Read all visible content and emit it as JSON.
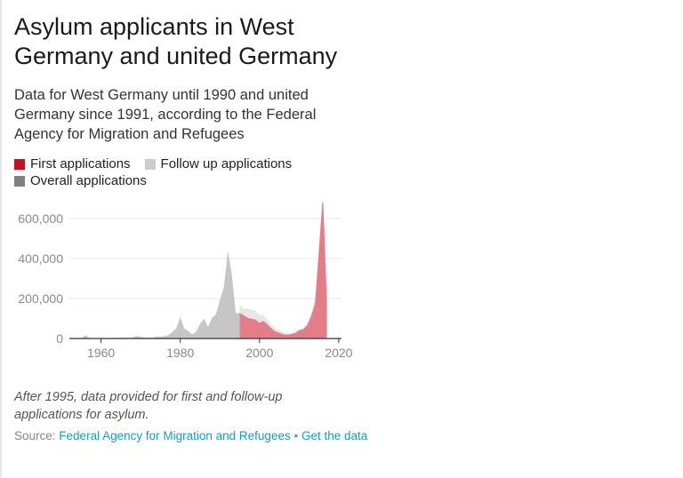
{
  "title": "Asylum applicants in West Germany and united Germany",
  "subtitle": "Data for West Germany until 1990 and united Germany since 1991, according to the Federal Agency for Migration and Refugees",
  "legend": {
    "first": "First applications",
    "follow": "Follow up applications",
    "overall": "Overall applications"
  },
  "colors": {
    "first": "#c4101f",
    "follow": "#cccccc",
    "overall": "#808080",
    "axis": "#333333",
    "grid": "#e6e6e6",
    "tick_text": "#888888",
    "link": "#1a9bbf"
  },
  "note": "After 1995, data provided for first and follow-up applications for asylum.",
  "source": {
    "prefix": "Source:",
    "link": "Federal Agency for Migration and Refugees",
    "separator": "•",
    "get_data": "Get the data"
  },
  "chart_data": {
    "type": "area",
    "x_ticks": [
      1960,
      1980,
      2000,
      2020
    ],
    "y_ticks": [
      0,
      200000,
      400000,
      600000
    ],
    "y_tick_labels": [
      "0",
      "200,000",
      "400,000",
      "600,000"
    ],
    "xlim": [
      1952,
      2018
    ],
    "ylim": [
      0,
      680000
    ],
    "grid": true,
    "legend_position": "top",
    "series": [
      {
        "name": "Overall applications",
        "x": [
          1953,
          1954,
          1955,
          1956,
          1957,
          1958,
          1959,
          1960,
          1961,
          1962,
          1963,
          1964,
          1965,
          1966,
          1967,
          1968,
          1969,
          1970,
          1971,
          1972,
          1973,
          1974,
          1975,
          1976,
          1977,
          1978,
          1979,
          1980,
          1981,
          1982,
          1983,
          1984,
          1985,
          1986,
          1987,
          1988,
          1989,
          1990,
          1991,
          1992,
          1993,
          1994,
          1995
        ],
        "values": [
          2000,
          2000,
          1000,
          16000,
          4000,
          3000,
          2000,
          3000,
          3000,
          2000,
          3000,
          4000,
          4000,
          4000,
          3000,
          6000,
          12000,
          9000,
          5000,
          5000,
          5000,
          9000,
          10000,
          11000,
          16000,
          33000,
          51000,
          108000,
          50000,
          37000,
          20000,
          35000,
          74000,
          100000,
          57000,
          103000,
          121000,
          193000,
          256000,
          438000,
          323000,
          127000,
          128000
        ]
      },
      {
        "name": "First applications",
        "x": [
          1995,
          1996,
          1997,
          1998,
          1999,
          2000,
          2001,
          2002,
          2003,
          2004,
          2005,
          2006,
          2007,
          2008,
          2009,
          2010,
          2011,
          2012,
          2013,
          2014,
          2015,
          2016,
          2017
        ],
        "values": [
          128000,
          116000,
          104000,
          99000,
          95000,
          79000,
          88000,
          71000,
          51000,
          36000,
          29000,
          21000,
          19000,
          22000,
          28000,
          41000,
          46000,
          65000,
          110000,
          173000,
          442000,
          722000,
          198000
        ]
      },
      {
        "name": "Follow up applications",
        "x": [
          1995,
          1996,
          1997,
          1998,
          1999,
          2000,
          2001,
          2002,
          2003,
          2004,
          2005,
          2006,
          2007,
          2008,
          2009,
          2010,
          2011,
          2012,
          2013,
          2014,
          2015,
          2016,
          2017
        ],
        "values": [
          39000,
          33000,
          47000,
          45000,
          44000,
          39000,
          30000,
          20000,
          17000,
          15000,
          13000,
          9000,
          8000,
          6000,
          5000,
          7000,
          8000,
          13000,
          17000,
          30000,
          35000,
          23000,
          25000
        ]
      }
    ]
  }
}
